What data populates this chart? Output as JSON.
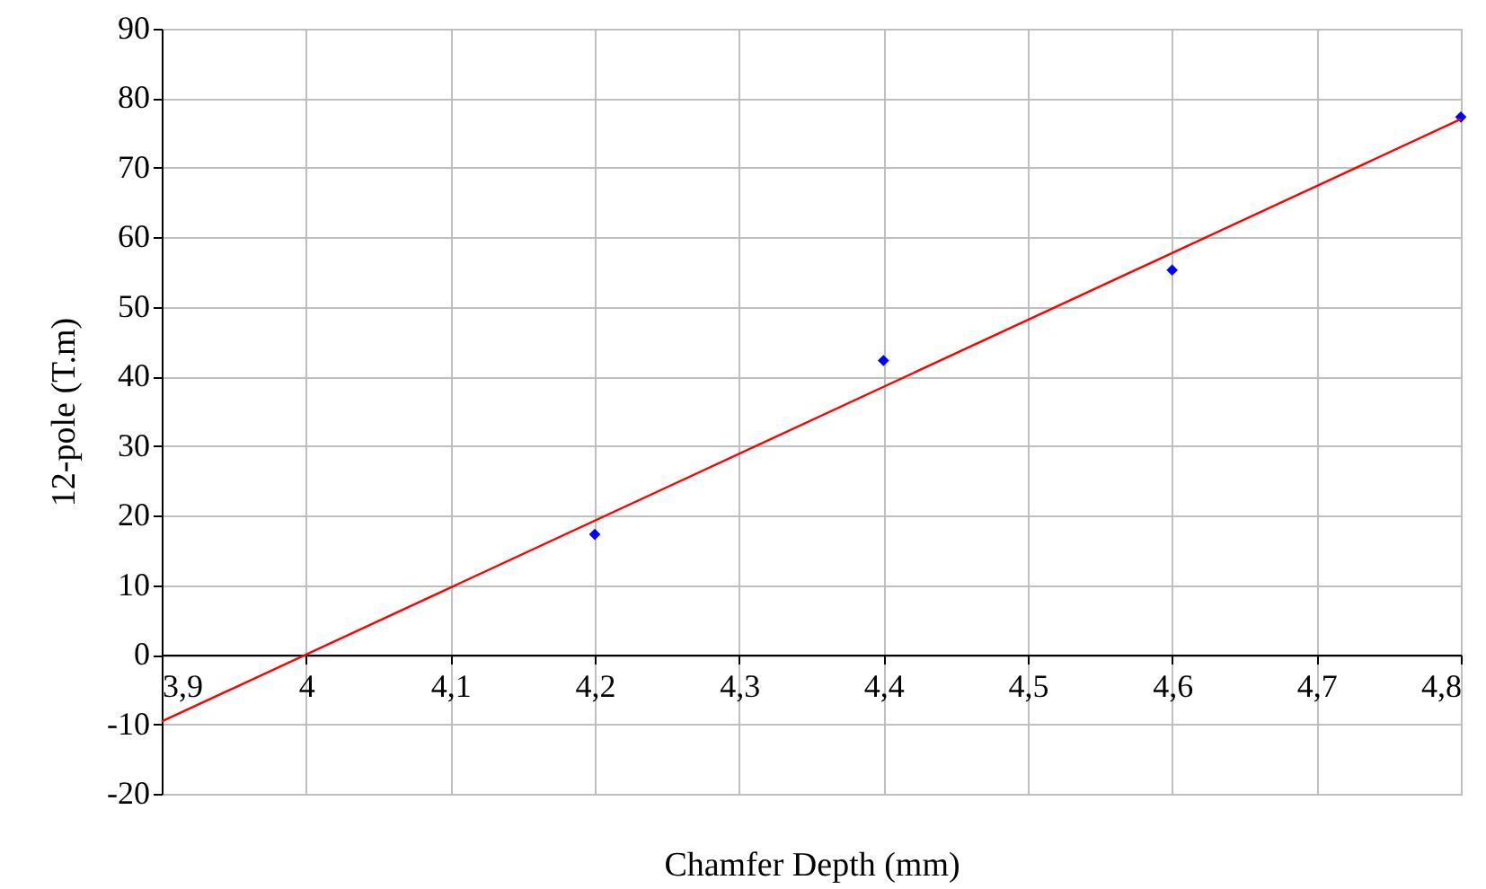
{
  "chart_data": {
    "type": "scatter",
    "xlabel": "Chamfer Depth (mm)",
    "ylabel": "12-pole (T.m)",
    "xlim": [
      3.9,
      4.8
    ],
    "xticks": [
      {
        "value": 3.9,
        "label": "3,9"
      },
      {
        "value": 4,
        "label": "4"
      },
      {
        "value": 4.1,
        "label": "4,1"
      },
      {
        "value": 4.2,
        "label": "4,2"
      },
      {
        "value": 4.3,
        "label": "4,3"
      },
      {
        "value": 4.4,
        "label": "4,4"
      },
      {
        "value": 4.5,
        "label": "4,5"
      },
      {
        "value": 4.6,
        "label": "4,6"
      },
      {
        "value": 4.7,
        "label": "4,7"
      },
      {
        "value": 4.8,
        "label": "4,8"
      }
    ],
    "ylim": [
      -20,
      90
    ],
    "yticks": [
      -20,
      -10,
      0,
      10,
      20,
      30,
      40,
      50,
      60,
      70,
      80,
      90
    ],
    "grid": true,
    "marker": "diamond",
    "series": [
      {
        "type": "scatter",
        "color": "#0000ff",
        "x": [
          4.2,
          4.4,
          4.6,
          4.8
        ],
        "values": [
          17.3,
          42.3,
          55.3,
          77.3
        ]
      },
      {
        "type": "line",
        "marker": "none",
        "color": "#ff0000",
        "x": [
          3.9,
          4.8
        ],
        "values": [
          -9.6,
          77
        ]
      }
    ]
  }
}
